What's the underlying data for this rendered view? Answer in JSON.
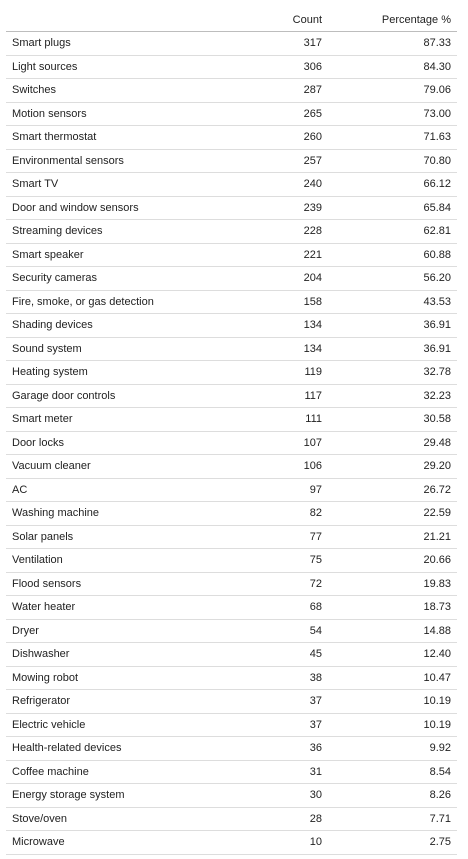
{
  "table": {
    "headers": [
      "",
      "Count",
      "Percentage %"
    ],
    "rows": [
      [
        "Smart plugs",
        "317",
        "87.33"
      ],
      [
        "Light sources",
        "306",
        "84.30"
      ],
      [
        "Switches",
        "287",
        "79.06"
      ],
      [
        "Motion sensors",
        "265",
        "73.00"
      ],
      [
        "Smart thermostat",
        "260",
        "71.63"
      ],
      [
        "Environmental sensors",
        "257",
        "70.80"
      ],
      [
        "Smart TV",
        "240",
        "66.12"
      ],
      [
        "Door and window sensors",
        "239",
        "65.84"
      ],
      [
        "Streaming devices",
        "228",
        "62.81"
      ],
      [
        "Smart speaker",
        "221",
        "60.88"
      ],
      [
        "Security cameras",
        "204",
        "56.20"
      ],
      [
        "Fire, smoke, or gas detection",
        "158",
        "43.53"
      ],
      [
        "Shading devices",
        "134",
        "36.91"
      ],
      [
        "Sound system",
        "134",
        "36.91"
      ],
      [
        "Heating system",
        "119",
        "32.78"
      ],
      [
        "Garage door controls",
        "117",
        "32.23"
      ],
      [
        "Smart meter",
        "111",
        "30.58"
      ],
      [
        "Door locks",
        "107",
        "29.48"
      ],
      [
        "Vacuum cleaner",
        "106",
        "29.20"
      ],
      [
        "AC",
        "97",
        "26.72"
      ],
      [
        "Washing machine",
        "82",
        "22.59"
      ],
      [
        "Solar panels",
        "77",
        "21.21"
      ],
      [
        "Ventilation",
        "75",
        "20.66"
      ],
      [
        "Flood sensors",
        "72",
        "19.83"
      ],
      [
        "Water heater",
        "68",
        "18.73"
      ],
      [
        "Dryer",
        "54",
        "14.88"
      ],
      [
        "Dishwasher",
        "45",
        "12.40"
      ],
      [
        "Mowing robot",
        "38",
        "10.47"
      ],
      [
        "Refrigerator",
        "37",
        "10.19"
      ],
      [
        "Electric vehicle",
        "37",
        "10.19"
      ],
      [
        "Health-related devices",
        "36",
        "9.92"
      ],
      [
        "Coffee machine",
        "31",
        "8.54"
      ],
      [
        "Energy storage system",
        "30",
        "8.26"
      ],
      [
        "Stove/oven",
        "28",
        "7.71"
      ],
      [
        "Microwave",
        "10",
        "2.75"
      ]
    ]
  }
}
